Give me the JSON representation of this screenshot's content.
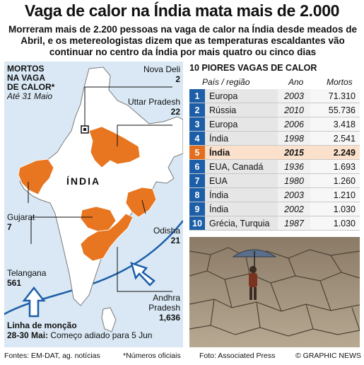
{
  "title": "Vaga de calor na Índia mata mais de 2.000",
  "subtitle": "Morreram mais de 2.200 pessoas na vaga de calor na Índia desde meados de Abril, e os metereologistas dizem que as temperaturas escaldantes vão continuar no centro da Índia por mais quatro ou cinco dias",
  "map": {
    "legend_line1": "MORTOS",
    "legend_line2": "NA VAGA",
    "legend_line3": "DE CALOR*",
    "legend_date": "Até 31 Maio",
    "country_label": "ÍNDIA",
    "regions": [
      {
        "name": "Nova Deli",
        "count": "2"
      },
      {
        "name": "Uttar Pradesh",
        "count": "22"
      },
      {
        "name": "Gujarat",
        "count": "7"
      },
      {
        "name": "Odisha",
        "count": "21"
      },
      {
        "name": "Telangana",
        "count": "561"
      },
      {
        "name": "Andhra",
        "name2": "Pradesh",
        "count": "1,636"
      }
    ],
    "monsoon_title1": "Linha de monção",
    "monsoon_title2": "28-30 Mai:",
    "monsoon_note": "Começo adiado para 5 Jun",
    "colors": {
      "affected": "#e8751f",
      "sea": "#d9e8f4",
      "land": "#ffffff",
      "monsoon": "#1c5ea8"
    }
  },
  "table": {
    "title": "10 PIORES VAGAS DE CALOR",
    "headers": {
      "country": "País / região",
      "year": "Ano",
      "deaths": "Mortos"
    },
    "rows": [
      {
        "rank": "1",
        "country": "Europa",
        "year": "2003",
        "deaths": "71.310"
      },
      {
        "rank": "2",
        "country": "Rússia",
        "year": "2010",
        "deaths": "55.736"
      },
      {
        "rank": "3",
        "country": "Europa",
        "year": "2006",
        "deaths": "3.418"
      },
      {
        "rank": "4",
        "country": "Índia",
        "year": "1998",
        "deaths": "2.541"
      },
      {
        "rank": "5",
        "country": "Índia",
        "year": "2015",
        "deaths": "2.249",
        "highlight": true
      },
      {
        "rank": "6",
        "country": "EUA, Canadá",
        "year": "1936",
        "deaths": "1.693"
      },
      {
        "rank": "7",
        "country": "EUA",
        "year": "1980",
        "deaths": "1.260"
      },
      {
        "rank": "8",
        "country": "Índia",
        "year": "2003",
        "deaths": "1.210"
      },
      {
        "rank": "9",
        "country": "Índia",
        "year": "2002",
        "deaths": "1.030"
      },
      {
        "rank": "10",
        "country": "Grécia, Turquia",
        "year": "1987",
        "deaths": "1.030"
      }
    ]
  },
  "footer": {
    "sources": "Fontes: EM-DAT, ag. notícias",
    "note": "*Números oficiais",
    "photo": "Foto: Associated Press",
    "copyright": "© GRAPHIC NEWS"
  }
}
